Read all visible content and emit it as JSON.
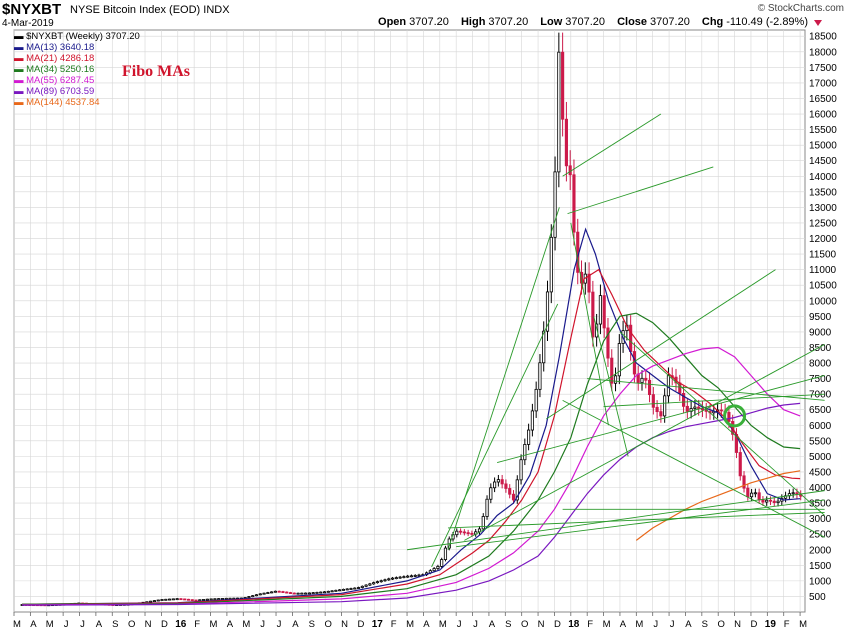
{
  "header": {
    "symbol": "$NYXBT",
    "name": "NYSE Bitcoin Index (EOD)",
    "exchange": "INDX",
    "date": "4-Mar-2019",
    "brand": "© StockCharts.com",
    "open_label": "Open",
    "open": "3707.20",
    "high_label": "High",
    "high": "3707.20",
    "low_label": "Low",
    "low": "3707.20",
    "close_label": "Close",
    "close": "3707.20",
    "chg_label": "Chg",
    "chg": "-110.49 (-2.89%)"
  },
  "legend": [
    {
      "text": "$NYXBT (Weekly) 3707.20",
      "color": "#000000"
    },
    {
      "text": "MA(13) 3640.18",
      "color": "#1a1a8c"
    },
    {
      "text": "MA(21) 4286.18",
      "color": "#d0142c"
    },
    {
      "text": "MA(34) 5250.16",
      "color": "#1e7a1e"
    },
    {
      "text": "MA(55) 6287.45",
      "color": "#d21ad2"
    },
    {
      "text": "MA(89) 6703.59",
      "color": "#7a18c0"
    },
    {
      "text": "MA(144) 4537.84",
      "color": "#e8681a"
    }
  ],
  "annotation": {
    "text": "Fibo MAs",
    "color": "#d0142c"
  },
  "colors": {
    "up": "#000000",
    "down": "#cc1a4a",
    "trend": "#2a9a2a",
    "grid": "#d6d6d6",
    "circle": "#3ab03a"
  },
  "chart_data": {
    "type": "candlestick-weekly",
    "title": "$NYXBT NYSE Bitcoin Index (EOD) INDX",
    "y_axis": {
      "position": "right",
      "ylim": [
        0,
        18700
      ],
      "ticks": [
        500,
        1000,
        1500,
        2000,
        2500,
        3000,
        3500,
        4000,
        4500,
        5000,
        5500,
        6000,
        6500,
        7000,
        7500,
        8000,
        8500,
        9000,
        9500,
        10000,
        10500,
        11000,
        11500,
        12000,
        12500,
        13000,
        13500,
        14000,
        14500,
        15000,
        15500,
        16000,
        16500,
        17000,
        17500,
        18000,
        18500
      ]
    },
    "x_axis": {
      "range_months": [
        0,
        48.3
      ],
      "ticks": [
        {
          "m": 0,
          "label": "M"
        },
        {
          "m": 1,
          "label": "A"
        },
        {
          "m": 2,
          "label": "M"
        },
        {
          "m": 3,
          "label": "J"
        },
        {
          "m": 4,
          "label": "J"
        },
        {
          "m": 5,
          "label": "A"
        },
        {
          "m": 6,
          "label": "S"
        },
        {
          "m": 7,
          "label": "O"
        },
        {
          "m": 8,
          "label": "N"
        },
        {
          "m": 9,
          "label": "D"
        },
        {
          "m": 10,
          "label": "16",
          "year": true
        },
        {
          "m": 11,
          "label": "F"
        },
        {
          "m": 12,
          "label": "M"
        },
        {
          "m": 13,
          "label": "A"
        },
        {
          "m": 14,
          "label": "M"
        },
        {
          "m": 15,
          "label": "J"
        },
        {
          "m": 16,
          "label": "J"
        },
        {
          "m": 17,
          "label": "A"
        },
        {
          "m": 18,
          "label": "S"
        },
        {
          "m": 19,
          "label": "O"
        },
        {
          "m": 20,
          "label": "N"
        },
        {
          "m": 21,
          "label": "D"
        },
        {
          "m": 22,
          "label": "17",
          "year": true
        },
        {
          "m": 23,
          "label": "F"
        },
        {
          "m": 24,
          "label": "M"
        },
        {
          "m": 25,
          "label": "A"
        },
        {
          "m": 26,
          "label": "M"
        },
        {
          "m": 27,
          "label": "J"
        },
        {
          "m": 28,
          "label": "J"
        },
        {
          "m": 29,
          "label": "A"
        },
        {
          "m": 30,
          "label": "S"
        },
        {
          "m": 31,
          "label": "O"
        },
        {
          "m": 32,
          "label": "N"
        },
        {
          "m": 33,
          "label": "D"
        },
        {
          "m": 34,
          "label": "18",
          "year": true
        },
        {
          "m": 35,
          "label": "F"
        },
        {
          "m": 36,
          "label": "M"
        },
        {
          "m": 37,
          "label": "A"
        },
        {
          "m": 38,
          "label": "M"
        },
        {
          "m": 39,
          "label": "J"
        },
        {
          "m": 40,
          "label": "J"
        },
        {
          "m": 41,
          "label": "A"
        },
        {
          "m": 42,
          "label": "S"
        },
        {
          "m": 43,
          "label": "O"
        },
        {
          "m": 44,
          "label": "N"
        },
        {
          "m": 45,
          "label": "D"
        },
        {
          "m": 46,
          "label": "19",
          "year": true
        },
        {
          "m": 47,
          "label": "F"
        },
        {
          "m": 48,
          "label": "M"
        }
      ]
    },
    "price_path": [
      [
        0.5,
        240
      ],
      [
        2,
        230
      ],
      [
        3,
        250
      ],
      [
        4,
        290
      ],
      [
        5,
        260
      ],
      [
        6,
        235
      ],
      [
        7,
        250
      ],
      [
        8,
        320
      ],
      [
        9,
        400
      ],
      [
        10,
        430
      ],
      [
        11,
        380
      ],
      [
        12,
        420
      ],
      [
        13,
        440
      ],
      [
        14,
        450
      ],
      [
        15,
        580
      ],
      [
        16,
        670
      ],
      [
        17,
        600
      ],
      [
        18,
        610
      ],
      [
        19,
        650
      ],
      [
        20,
        720
      ],
      [
        21,
        780
      ],
      [
        22,
        950
      ],
      [
        23,
        1080
      ],
      [
        24,
        1150
      ],
      [
        25,
        1200
      ],
      [
        26,
        1500
      ],
      [
        26.5,
        2300
      ],
      [
        27,
        2600
      ],
      [
        27.5,
        2550
      ],
      [
        28,
        2500
      ],
      [
        28.5,
        2700
      ],
      [
        29,
        3900
      ],
      [
        29.5,
        4300
      ],
      [
        30,
        4000
      ],
      [
        30.5,
        3600
      ],
      [
        31,
        5000
      ],
      [
        31.5,
        6000
      ],
      [
        32,
        7500
      ],
      [
        32.5,
        9700
      ],
      [
        33,
        13500
      ],
      [
        33.3,
        18500
      ],
      [
        33.6,
        14500
      ],
      [
        34,
        14000
      ],
      [
        34.3,
        11200
      ],
      [
        34.6,
        10500
      ],
      [
        35,
        11000
      ],
      [
        35.4,
        8500
      ],
      [
        35.8,
        10200
      ],
      [
        36.2,
        8400
      ],
      [
        36.6,
        7000
      ],
      [
        37,
        8800
      ],
      [
        37.4,
        9300
      ],
      [
        37.7,
        8200
      ],
      [
        38,
        7300
      ],
      [
        38.5,
        7600
      ],
      [
        39,
        6600
      ],
      [
        39.5,
        6300
      ],
      [
        40,
        7700
      ],
      [
        40.5,
        7300
      ],
      [
        41,
        6400
      ],
      [
        41.5,
        6600
      ],
      [
        42,
        6500
      ],
      [
        42.5,
        6400
      ],
      [
        43,
        6500
      ],
      [
        43.5,
        6400
      ],
      [
        44,
        5500
      ],
      [
        44.4,
        4200
      ],
      [
        44.8,
        3700
      ],
      [
        45.2,
        3900
      ],
      [
        45.6,
        3500
      ],
      [
        46,
        3600
      ],
      [
        46.5,
        3500
      ],
      [
        47,
        3700
      ],
      [
        47.5,
        3850
      ],
      [
        48.1,
        3707
      ]
    ],
    "series": [
      {
        "name": "MA(13)",
        "color": "#1a1a8c",
        "points": [
          [
            0.5,
            250
          ],
          [
            10,
            300
          ],
          [
            20,
            600
          ],
          [
            24,
            1000
          ],
          [
            26,
            1350
          ],
          [
            27.3,
            2000
          ],
          [
            28.5,
            2500
          ],
          [
            29.5,
            3100
          ],
          [
            30.5,
            3500
          ],
          [
            31.5,
            4400
          ],
          [
            32.5,
            6000
          ],
          [
            33.3,
            8200
          ],
          [
            34.2,
            11000
          ],
          [
            34.9,
            12300
          ],
          [
            35.5,
            11500
          ],
          [
            36.3,
            10000
          ],
          [
            37.2,
            8800
          ],
          [
            38,
            8000
          ],
          [
            39,
            7600
          ],
          [
            40,
            7200
          ],
          [
            41,
            6900
          ],
          [
            42,
            6600
          ],
          [
            43,
            6400
          ],
          [
            44,
            5800
          ],
          [
            45,
            4700
          ],
          [
            46,
            3800
          ],
          [
            47,
            3600
          ],
          [
            48,
            3640
          ]
        ]
      },
      {
        "name": "MA(21)",
        "color": "#d0142c",
        "points": [
          [
            0.5,
            250
          ],
          [
            10,
            290
          ],
          [
            20,
            560
          ],
          [
            24,
            900
          ],
          [
            26,
            1200
          ],
          [
            28,
            1900
          ],
          [
            29,
            2300
          ],
          [
            30,
            2900
          ],
          [
            31,
            3600
          ],
          [
            32,
            4500
          ],
          [
            33,
            6300
          ],
          [
            34,
            8800
          ],
          [
            34.8,
            10700
          ],
          [
            35.7,
            11000
          ],
          [
            36.5,
            10200
          ],
          [
            37.5,
            9100
          ],
          [
            38.5,
            8400
          ],
          [
            39.5,
            7900
          ],
          [
            40.5,
            7400
          ],
          [
            41.5,
            7100
          ],
          [
            42.5,
            6700
          ],
          [
            43.5,
            6200
          ],
          [
            44.5,
            5400
          ],
          [
            45.5,
            4700
          ],
          [
            46.5,
            4400
          ],
          [
            47.5,
            4300
          ],
          [
            48,
            4286
          ]
        ]
      },
      {
        "name": "MA(34)",
        "color": "#1e7a1e",
        "points": [
          [
            0.5,
            250
          ],
          [
            10,
            270
          ],
          [
            20,
            500
          ],
          [
            24,
            750
          ],
          [
            27,
            1200
          ],
          [
            29,
            1800
          ],
          [
            30.5,
            2600
          ],
          [
            32,
            3600
          ],
          [
            33,
            4500
          ],
          [
            34,
            5600
          ],
          [
            35,
            7300
          ],
          [
            36,
            8700
          ],
          [
            37,
            9500
          ],
          [
            38,
            9600
          ],
          [
            39,
            9300
          ],
          [
            40,
            8800
          ],
          [
            41,
            8200
          ],
          [
            42,
            7600
          ],
          [
            43,
            7200
          ],
          [
            44,
            6600
          ],
          [
            45,
            6000
          ],
          [
            46,
            5600
          ],
          [
            47,
            5300
          ],
          [
            48,
            5250
          ]
        ]
      },
      {
        "name": "MA(55)",
        "color": "#d21ad2",
        "points": [
          [
            0.5,
            230
          ],
          [
            10,
            250
          ],
          [
            20,
            420
          ],
          [
            24,
            600
          ],
          [
            27,
            950
          ],
          [
            29,
            1400
          ],
          [
            30.5,
            1900
          ],
          [
            32,
            2600
          ],
          [
            33,
            3300
          ],
          [
            34,
            4200
          ],
          [
            35,
            5300
          ],
          [
            36,
            6300
          ],
          [
            37,
            7000
          ],
          [
            38,
            7600
          ],
          [
            39,
            7900
          ],
          [
            40,
            8100
          ],
          [
            41,
            8300
          ],
          [
            42,
            8450
          ],
          [
            43,
            8500
          ],
          [
            44,
            8200
          ],
          [
            45,
            7600
          ],
          [
            46,
            7000
          ],
          [
            47,
            6500
          ],
          [
            48,
            6300
          ]
        ]
      },
      {
        "name": "MA(89)",
        "color": "#7a18c0",
        "points": [
          [
            0.5,
            220
          ],
          [
            10,
            240
          ],
          [
            20,
            330
          ],
          [
            24,
            450
          ],
          [
            27,
            700
          ],
          [
            29,
            1000
          ],
          [
            30.5,
            1350
          ],
          [
            32,
            1800
          ],
          [
            33,
            2400
          ],
          [
            34,
            3100
          ],
          [
            35,
            3800
          ],
          [
            36,
            4400
          ],
          [
            37,
            4900
          ],
          [
            38,
            5300
          ],
          [
            39,
            5600
          ],
          [
            40,
            5800
          ],
          [
            41,
            5950
          ],
          [
            42,
            6050
          ],
          [
            43,
            6150
          ],
          [
            44,
            6250
          ],
          [
            45,
            6400
          ],
          [
            46,
            6550
          ],
          [
            47,
            6650
          ],
          [
            48,
            6703
          ]
        ]
      },
      {
        "name": "MA(144)",
        "color": "#e8681a",
        "points": [
          [
            38,
            2300
          ],
          [
            39,
            2700
          ],
          [
            40,
            3000
          ],
          [
            41,
            3300
          ],
          [
            42,
            3550
          ],
          [
            43,
            3750
          ],
          [
            44,
            3950
          ],
          [
            45,
            4150
          ],
          [
            46,
            4300
          ],
          [
            47,
            4450
          ],
          [
            48,
            4538
          ]
        ]
      }
    ],
    "trendlines": [
      [
        [
          25.5,
          1450
        ],
        [
          33.2,
          9900
        ]
      ],
      [
        [
          26.5,
          2000
        ],
        [
          33.3,
          13000
        ]
      ],
      [
        [
          33.5,
          14000
        ],
        [
          39.5,
          16000
        ]
      ],
      [
        [
          33.8,
          12800
        ],
        [
          42.7,
          14300
        ]
      ],
      [
        [
          32.5,
          6200
        ],
        [
          46.5,
          11000
        ]
      ],
      [
        [
          27.5,
          2300
        ],
        [
          49.5,
          8600
        ]
      ],
      [
        [
          29.5,
          4800
        ],
        [
          49.5,
          7600
        ]
      ],
      [
        [
          36,
          6600
        ],
        [
          49.5,
          7000
        ]
      ],
      [
        [
          35,
          7500
        ],
        [
          49.5,
          6800
        ]
      ],
      [
        [
          24,
          2000
        ],
        [
          49.5,
          3900
        ]
      ],
      [
        [
          26.5,
          2700
        ],
        [
          49.5,
          3200
        ]
      ],
      [
        [
          27,
          2100
        ],
        [
          49.5,
          3600
        ]
      ],
      [
        [
          33.5,
          3300
        ],
        [
          49.5,
          3300
        ]
      ],
      [
        [
          33.5,
          6800
        ],
        [
          49.5,
          2400
        ]
      ],
      [
        [
          35.4,
          9500
        ],
        [
          37.5,
          5000
        ]
      ],
      [
        [
          37,
          9000
        ],
        [
          49.5,
          3100
        ]
      ],
      [
        [
          34,
          12500
        ],
        [
          36.3,
          6000
        ]
      ]
    ],
    "circle_marker": {
      "m": 44,
      "value": 6300
    }
  }
}
